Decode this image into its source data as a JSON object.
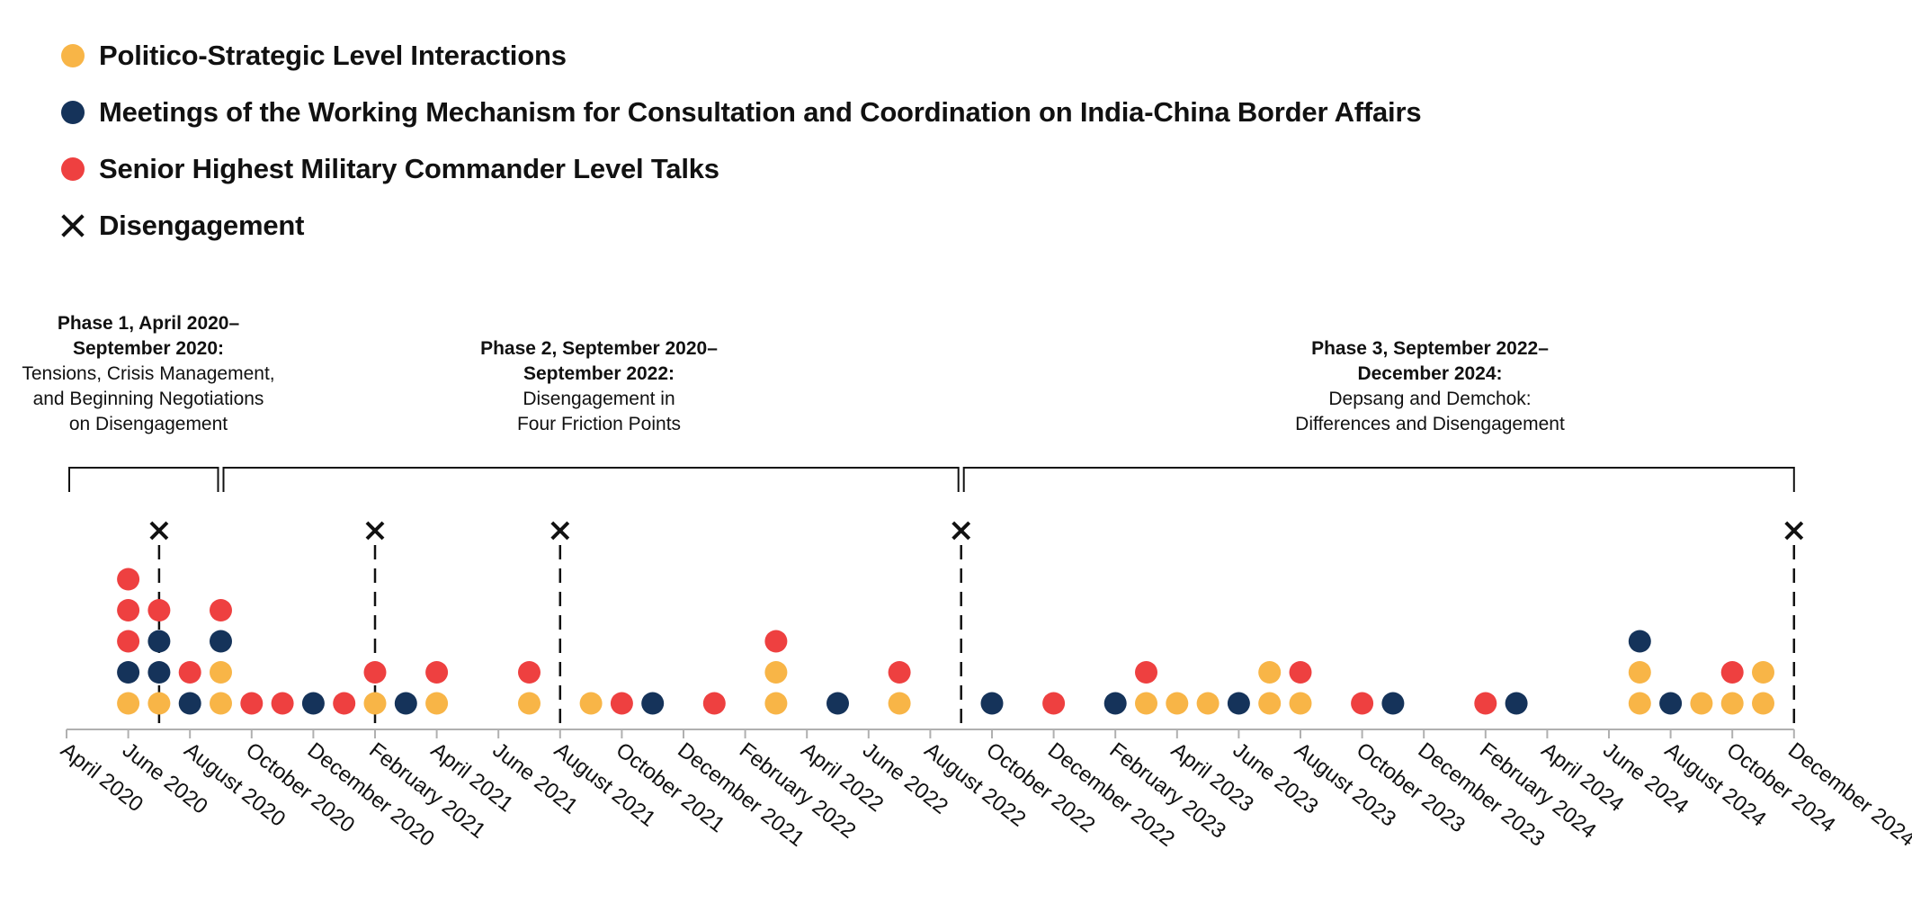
{
  "colors": {
    "politico": "#F8B547",
    "wmcc": "#15335A",
    "military": "#EE4040",
    "axis": "#B0B0B0",
    "ink": "#111111"
  },
  "legend": [
    {
      "key": "politico",
      "label": "Politico-Strategic Level Interactions",
      "icon": "yellow-dot"
    },
    {
      "key": "wmcc",
      "label": "Meetings of the Working Mechanism for Consultation and Coordination on India-China Border Affairs",
      "icon": "navy-dot"
    },
    {
      "key": "military",
      "label": "Senior Highest Military Commander Level Talks",
      "icon": "red-dot"
    },
    {
      "key": "disengagement",
      "label": "Disengagement",
      "icon": "x-mark-icon"
    }
  ],
  "phases": [
    {
      "title": "Phase 1, April 2020–\nSeptember 2020:",
      "subtitle": "Tensions, Crisis Management,\nand Beginning Negotiations\non Disengagement"
    },
    {
      "title": "Phase 2, September 2020–\nSeptember 2022:",
      "subtitle": "Disengagement in\nFour Friction Points"
    },
    {
      "title": "Phase 3, September 2022–\nDecember 2024:",
      "subtitle": "Depsang and Demchok:\nDifferences and Disengagement"
    }
  ],
  "chart_data": {
    "type": "scatter",
    "title": "",
    "x_unit": "month (0 = April 2020)",
    "x_range": [
      0,
      56
    ],
    "tick_months": [
      0,
      2,
      4,
      6,
      8,
      10,
      12,
      14,
      16,
      18,
      20,
      22,
      24,
      26,
      28,
      30,
      32,
      34,
      36,
      38,
      40,
      42,
      44,
      46,
      48,
      50,
      52,
      54,
      56
    ],
    "tick_labels": [
      "April 2020",
      "June 2020",
      "August 2020",
      "October 2020",
      "December 2020",
      "February 2021",
      "April 2021",
      "June 2021",
      "August 2021",
      "October 2021",
      "December 2021",
      "February 2022",
      "April 2022",
      "June 2022",
      "August 2022",
      "October 2022",
      "December 2022",
      "February 2023",
      "April 2023",
      "June 2023",
      "August 2023",
      "October 2023",
      "December 2023",
      "February 2024",
      "April 2024",
      "June 2024",
      "August 2024",
      "October 2024",
      "December 2024"
    ],
    "phase_ranges": [
      [
        0,
        5
      ],
      [
        5,
        29
      ],
      [
        29,
        56
      ]
    ],
    "disengagements": [
      3,
      10,
      16,
      29,
      56
    ],
    "series": [
      {
        "name": "Politico-Strategic Level Interactions",
        "key": "politico",
        "points": [
          [
            2,
            1
          ],
          [
            3,
            1
          ],
          [
            5,
            1
          ],
          [
            5,
            2
          ],
          [
            10,
            1
          ],
          [
            12,
            1
          ],
          [
            15,
            1
          ],
          [
            17,
            1
          ],
          [
            23,
            1
          ],
          [
            23,
            2
          ],
          [
            27,
            1
          ],
          [
            35,
            1
          ],
          [
            36,
            1
          ],
          [
            37,
            1
          ],
          [
            39,
            1
          ],
          [
            39,
            2
          ],
          [
            40,
            1
          ],
          [
            51,
            1
          ],
          [
            51,
            2
          ],
          [
            53,
            1
          ],
          [
            54,
            1
          ],
          [
            55,
            1
          ],
          [
            55,
            2
          ]
        ]
      },
      {
        "name": "Meetings of the Working Mechanism for Consultation and Coordination on India-China Border Affairs",
        "key": "wmcc",
        "points": [
          [
            2,
            2
          ],
          [
            3,
            2
          ],
          [
            3,
            3
          ],
          [
            4,
            1
          ],
          [
            5,
            3
          ],
          [
            8,
            1
          ],
          [
            11,
            1
          ],
          [
            19,
            1
          ],
          [
            25,
            1
          ],
          [
            30,
            1
          ],
          [
            34,
            1
          ],
          [
            38,
            1
          ],
          [
            43,
            1
          ],
          [
            47,
            1
          ],
          [
            51,
            3
          ],
          [
            52,
            1
          ]
        ]
      },
      {
        "name": "Senior Highest Military Commander Level Talks",
        "key": "military",
        "points": [
          [
            2,
            3
          ],
          [
            2,
            4
          ],
          [
            2,
            5
          ],
          [
            3,
            4
          ],
          [
            4,
            2
          ],
          [
            5,
            4
          ],
          [
            6,
            1
          ],
          [
            7,
            1
          ],
          [
            9,
            1
          ],
          [
            10,
            2
          ],
          [
            12,
            2
          ],
          [
            15,
            2
          ],
          [
            18,
            1
          ],
          [
            21,
            1
          ],
          [
            23,
            3
          ],
          [
            27,
            2
          ],
          [
            32,
            1
          ],
          [
            35,
            2
          ],
          [
            40,
            2
          ],
          [
            42,
            1
          ],
          [
            46,
            1
          ],
          [
            54,
            2
          ]
        ]
      }
    ]
  }
}
